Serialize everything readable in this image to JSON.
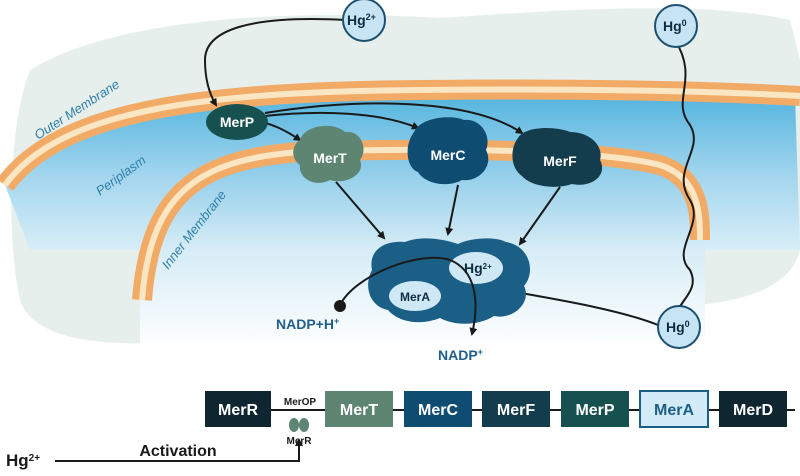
{
  "compartments": {
    "outer_membrane": "Outer Membrane",
    "periplasm": "Periplasm",
    "inner_membrane": "Inner Membrane"
  },
  "mercury": {
    "ionic": "Hg",
    "ionic_charge": "2+",
    "elemental": "Hg",
    "elemental_charge": "0"
  },
  "proteins": {
    "merp": "MerP",
    "mert": "MerT",
    "merc": "MerC",
    "merf": "MerF",
    "mera": "MerA"
  },
  "cofactors": {
    "nadph": "NADP+H",
    "nadph_sup": "+",
    "nadp": "NADP",
    "nadp_sup": "+"
  },
  "operon": {
    "merr_gene": "MerR",
    "operator": "MerOP",
    "merr_protein": "MerR",
    "genes": [
      "MerT",
      "MerC",
      "MerF",
      "MerP",
      "MerA",
      "MerD"
    ],
    "activation_label": "Activation",
    "inducer": "Hg",
    "inducer_charge": "2+"
  },
  "colors": {
    "merp": "#17514f",
    "mert": "#5d8572",
    "merc": "#0f4c72",
    "merf": "#133c4d",
    "mera": "#1c5f86",
    "membrane_orange": "#f2ab66",
    "membrane_cream": "#fbe6c4"
  }
}
